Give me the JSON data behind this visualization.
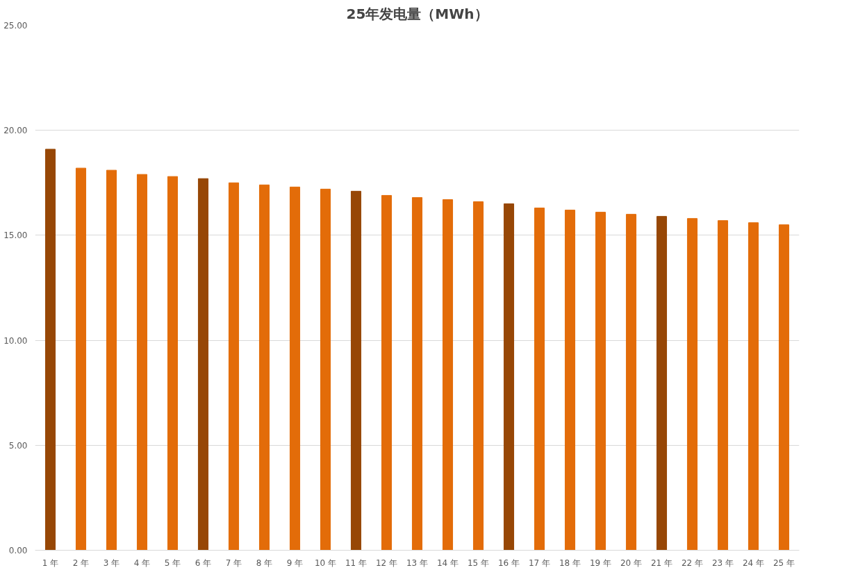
{
  "chart_data": {
    "type": "bar",
    "title": "25年发电量（MWh）",
    "categories": [
      "1 年",
      "2 年",
      "3 年",
      "4 年",
      "5 年",
      "6 年",
      "7 年",
      "8 年",
      "9 年",
      "10 年",
      "11 年",
      "12 年",
      "13 年",
      "14 年",
      "15 年",
      "16 年",
      "17 年",
      "18 年",
      "19 年",
      "20 年",
      "21 年",
      "22 年",
      "23 年",
      "24 年",
      "25 年"
    ],
    "values": [
      19.1,
      18.2,
      18.1,
      17.9,
      17.8,
      17.7,
      17.5,
      17.4,
      17.3,
      17.2,
      17.1,
      16.9,
      16.8,
      16.7,
      16.6,
      16.5,
      16.3,
      16.2,
      16.1,
      16.0,
      15.9,
      15.8,
      15.7,
      15.6,
      15.5
    ],
    "colors": [
      "#974706",
      "#e36c09",
      "#e36c09",
      "#e36c09",
      "#e36c09",
      "#974706",
      "#e36c09",
      "#e36c09",
      "#e36c09",
      "#e36c09",
      "#974706",
      "#e36c09",
      "#e36c09",
      "#e36c09",
      "#e36c09",
      "#974706",
      "#e36c09",
      "#e36c09",
      "#e36c09",
      "#e36c09",
      "#974706",
      "#e36c09",
      "#e36c09",
      "#e36c09",
      "#e36c09"
    ],
    "ylim": [
      0,
      25
    ],
    "yticks": [
      {
        "value": 0,
        "label": "0.00"
      },
      {
        "value": 5,
        "label": "5.00"
      },
      {
        "value": 10,
        "label": "10.00"
      },
      {
        "value": 15,
        "label": "15.00"
      },
      {
        "value": 20,
        "label": "20.00"
      },
      {
        "value": 25,
        "label": "25.00"
      }
    ],
    "grid": "y"
  }
}
